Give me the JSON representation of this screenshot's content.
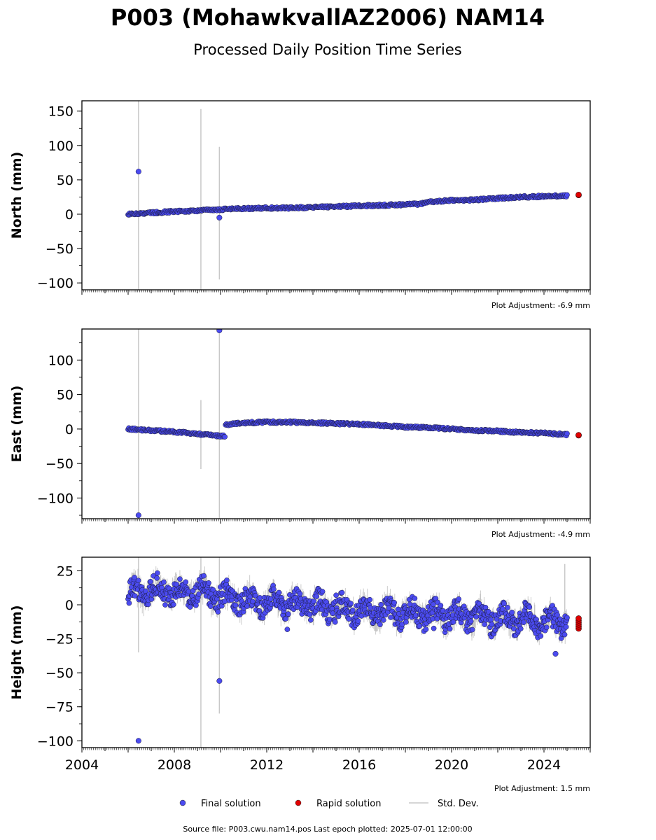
{
  "title": "P003 (MohawkvallAZ2006) NAM14",
  "subtitle": "Processed Daily Position Time Series",
  "legend": {
    "final": "Final solution",
    "rapid": "Rapid solution",
    "stddev": "Std. Dev."
  },
  "footer": "Source file: P003.cwu.nam14.pos  Last epoch plotted: 2025-07-01 12:00:00",
  "colors": {
    "final": "#4b4bf0",
    "rapid": "#e00000",
    "stddev": "#c8c8c8",
    "axis": "#000000"
  },
  "chart_data": [
    {
      "type": "scatter",
      "ylabel": "North (mm)",
      "adjustment": "Plot Adjustment: -6.9 mm",
      "xlim": [
        2004,
        2026
      ],
      "ylim": [
        -110,
        165
      ],
      "yticks": [
        -100,
        -50,
        0,
        50,
        100,
        150
      ],
      "ytick_labels": [
        "−100",
        "−50",
        "0",
        "50",
        "100",
        "150"
      ],
      "series": [
        {
          "name": "Final solution",
          "x": [
            2006.0,
            2007.0,
            2008.0,
            2009.0,
            2010.0,
            2011.0,
            2012.0,
            2013.0,
            2014.0,
            2015.0,
            2016.0,
            2017.0,
            2018.0,
            2018.7,
            2019.0,
            2020.0,
            2021.0,
            2022.0,
            2023.0,
            2024.0,
            2025.0
          ],
          "y": [
            0,
            2,
            4,
            5,
            7,
            8,
            9,
            9,
            10,
            11,
            12,
            13,
            14,
            15,
            18,
            20,
            21,
            23,
            25,
            26,
            27
          ]
        },
        {
          "name": "Rapid solution",
          "x": [
            2025.5
          ],
          "y": [
            28
          ]
        }
      ],
      "outliers": [
        {
          "x": 2006.45,
          "y": 62
        },
        {
          "x": 2009.95,
          "y": -5
        }
      ],
      "stddev_bars": [
        {
          "x": 2006.45,
          "lo": -110,
          "hi": 165
        },
        {
          "x": 2009.15,
          "lo": -110,
          "hi": 153
        },
        {
          "x": 2009.95,
          "lo": -95,
          "hi": 98
        }
      ]
    },
    {
      "type": "scatter",
      "ylabel": "East (mm)",
      "adjustment": "Plot Adjustment: -4.9 mm",
      "xlim": [
        2004,
        2026
      ],
      "ylim": [
        -130,
        145
      ],
      "yticks": [
        -100,
        -50,
        0,
        50,
        100
      ],
      "ytick_labels": [
        "−100",
        "−50",
        "0",
        "50",
        "100"
      ],
      "series": [
        {
          "name": "Final solution",
          "x": [
            2006.0,
            2007.0,
            2008.0,
            2009.0,
            2010.0,
            2010.2,
            2011.0,
            2012.0,
            2013.0,
            2014.0,
            2015.0,
            2016.0,
            2017.0,
            2018.0,
            2019.0,
            2020.0,
            2021.0,
            2022.0,
            2023.0,
            2024.0,
            2025.0
          ],
          "y": [
            0,
            -2,
            -4,
            -7,
            -10,
            6,
            9,
            10,
            10,
            9,
            8,
            7,
            5,
            3,
            2,
            0,
            -2,
            -3,
            -5,
            -6,
            -8
          ]
        },
        {
          "name": "Rapid solution",
          "x": [
            2025.5
          ],
          "y": [
            -9
          ]
        }
      ],
      "outliers": [
        {
          "x": 2006.45,
          "y": -125
        },
        {
          "x": 2009.95,
          "y": 143
        }
      ],
      "stddev_bars": [
        {
          "x": 2006.45,
          "lo": -130,
          "hi": 145
        },
        {
          "x": 2009.15,
          "lo": -58,
          "hi": 42
        },
        {
          "x": 2009.95,
          "lo": -130,
          "hi": 145
        }
      ]
    },
    {
      "type": "scatter",
      "ylabel": "Height (mm)",
      "adjustment": "Plot Adjustment: 1.5 mm",
      "xlim": [
        2004,
        2026
      ],
      "ylim": [
        -105,
        35
      ],
      "yticks": [
        -100,
        -75,
        -50,
        -25,
        0,
        25
      ],
      "ytick_labels": [
        "−100",
        "−75",
        "−50",
        "−25",
        "0",
        "25"
      ],
      "xticks": [
        2004,
        2008,
        2012,
        2016,
        2020,
        2024
      ],
      "xtick_labels": [
        "2004",
        "2008",
        "2012",
        "2016",
        "2020",
        "2024"
      ],
      "series": [
        {
          "name": "Final solution",
          "x": [
            2006.0,
            2007.0,
            2008.0,
            2009.0,
            2010.0,
            2011.0,
            2012.0,
            2013.0,
            2014.0,
            2015.0,
            2016.0,
            2017.0,
            2018.0,
            2019.0,
            2020.0,
            2021.0,
            2022.0,
            2023.0,
            2024.0,
            2025.0
          ],
          "y": [
            8,
            12,
            9,
            10,
            6,
            3,
            2,
            1,
            0,
            -3,
            -4,
            -5,
            -6,
            -7,
            -8,
            -9,
            -10,
            -10,
            -12,
            -13
          ]
        },
        {
          "name": "Rapid solution",
          "x": [
            2025.5
          ],
          "y": [
            -13
          ]
        }
      ],
      "outliers": [
        {
          "x": 2006.45,
          "y": -100
        },
        {
          "x": 2009.95,
          "y": -56
        },
        {
          "x": 2024.5,
          "y": -36
        }
      ],
      "stddev_bars": [
        {
          "x": 2006.45,
          "lo": -35,
          "hi": 35
        },
        {
          "x": 2009.15,
          "lo": -105,
          "hi": 35
        },
        {
          "x": 2009.95,
          "lo": -80,
          "hi": 35
        },
        {
          "x": 2024.9,
          "lo": -20,
          "hi": 30
        }
      ]
    }
  ]
}
